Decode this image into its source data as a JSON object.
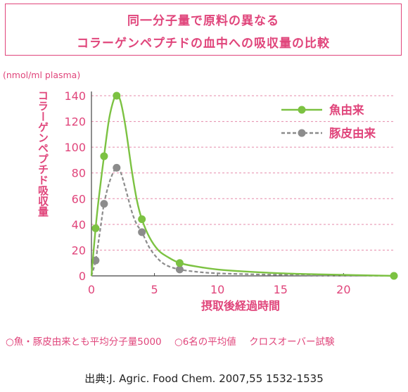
{
  "title": {
    "line1": "同一分子量で原料の異なる",
    "line2": "コラーゲンペプチドの血中への吸収量の比較"
  },
  "colors": {
    "accent": "#e0457b",
    "fish": "#7cc242",
    "pig": "#8c8c8c",
    "grid": "#e58aaa"
  },
  "chart_data": {
    "type": "line",
    "unit_label": "(nmol/ml plasma)",
    "ylabel": "コラーゲンペプチド吸収量",
    "xlabel": "摂取後経過時間",
    "xlim": [
      0,
      24
    ],
    "ylim": [
      0,
      140
    ],
    "xticks": [
      0,
      5,
      10,
      15,
      20
    ],
    "yticks": [
      0,
      20,
      40,
      60,
      80,
      100,
      120,
      140
    ],
    "grid": "horizontal dashed",
    "legend_position": "top-right",
    "series": [
      {
        "name": "魚由来",
        "style": "solid",
        "color": "#7cc242",
        "points": [
          [
            0,
            0
          ],
          [
            0.33,
            37
          ],
          [
            1,
            93
          ],
          [
            2,
            140
          ],
          [
            4,
            44
          ],
          [
            7,
            10
          ],
          [
            24,
            0
          ]
        ],
        "curve": [
          [
            0,
            0
          ],
          [
            0.33,
            37
          ],
          [
            0.6,
            62
          ],
          [
            1,
            93
          ],
          [
            1.4,
            122
          ],
          [
            1.8,
            138
          ],
          [
            2,
            140
          ],
          [
            2.3,
            136
          ],
          [
            2.7,
            116
          ],
          [
            3.2,
            82
          ],
          [
            3.6,
            59
          ],
          [
            4,
            44
          ],
          [
            4.6,
            30
          ],
          [
            5.3,
            20
          ],
          [
            6,
            15
          ],
          [
            7,
            10
          ],
          [
            8.5,
            7
          ],
          [
            10,
            5
          ],
          [
            12,
            3.5
          ],
          [
            15,
            2
          ],
          [
            18,
            1.2
          ],
          [
            21,
            0.6
          ],
          [
            24,
            0
          ]
        ]
      },
      {
        "name": "豚皮由来",
        "style": "dashed",
        "color": "#8c8c8c",
        "points": [
          [
            0,
            0
          ],
          [
            0.33,
            12
          ],
          [
            1,
            56
          ],
          [
            2,
            84
          ],
          [
            4,
            34
          ],
          [
            7,
            5
          ]
        ],
        "curve": [
          [
            0,
            0
          ],
          [
            0.33,
            12
          ],
          [
            0.7,
            36
          ],
          [
            1,
            56
          ],
          [
            1.4,
            72
          ],
          [
            1.8,
            82
          ],
          [
            2,
            84
          ],
          [
            2.3,
            81
          ],
          [
            2.7,
            68
          ],
          [
            3.2,
            50
          ],
          [
            3.6,
            40
          ],
          [
            4,
            34
          ],
          [
            4.6,
            22
          ],
          [
            5.3,
            13
          ],
          [
            6,
            8
          ],
          [
            7,
            5
          ],
          [
            8.5,
            3
          ],
          [
            10,
            2
          ],
          [
            12,
            1.4
          ],
          [
            15,
            0.8
          ],
          [
            18,
            0.4
          ],
          [
            21,
            0.2
          ],
          [
            24,
            0
          ]
        ]
      }
    ]
  },
  "footnote": {
    "note1": "○魚・豚皮由来とも平均分子量5000",
    "note2": "○6名の平均値",
    "note3": "クロスオーバー試験"
  },
  "source": "出典:J. Agric. Food Chem. 2007,55 1532-1535"
}
